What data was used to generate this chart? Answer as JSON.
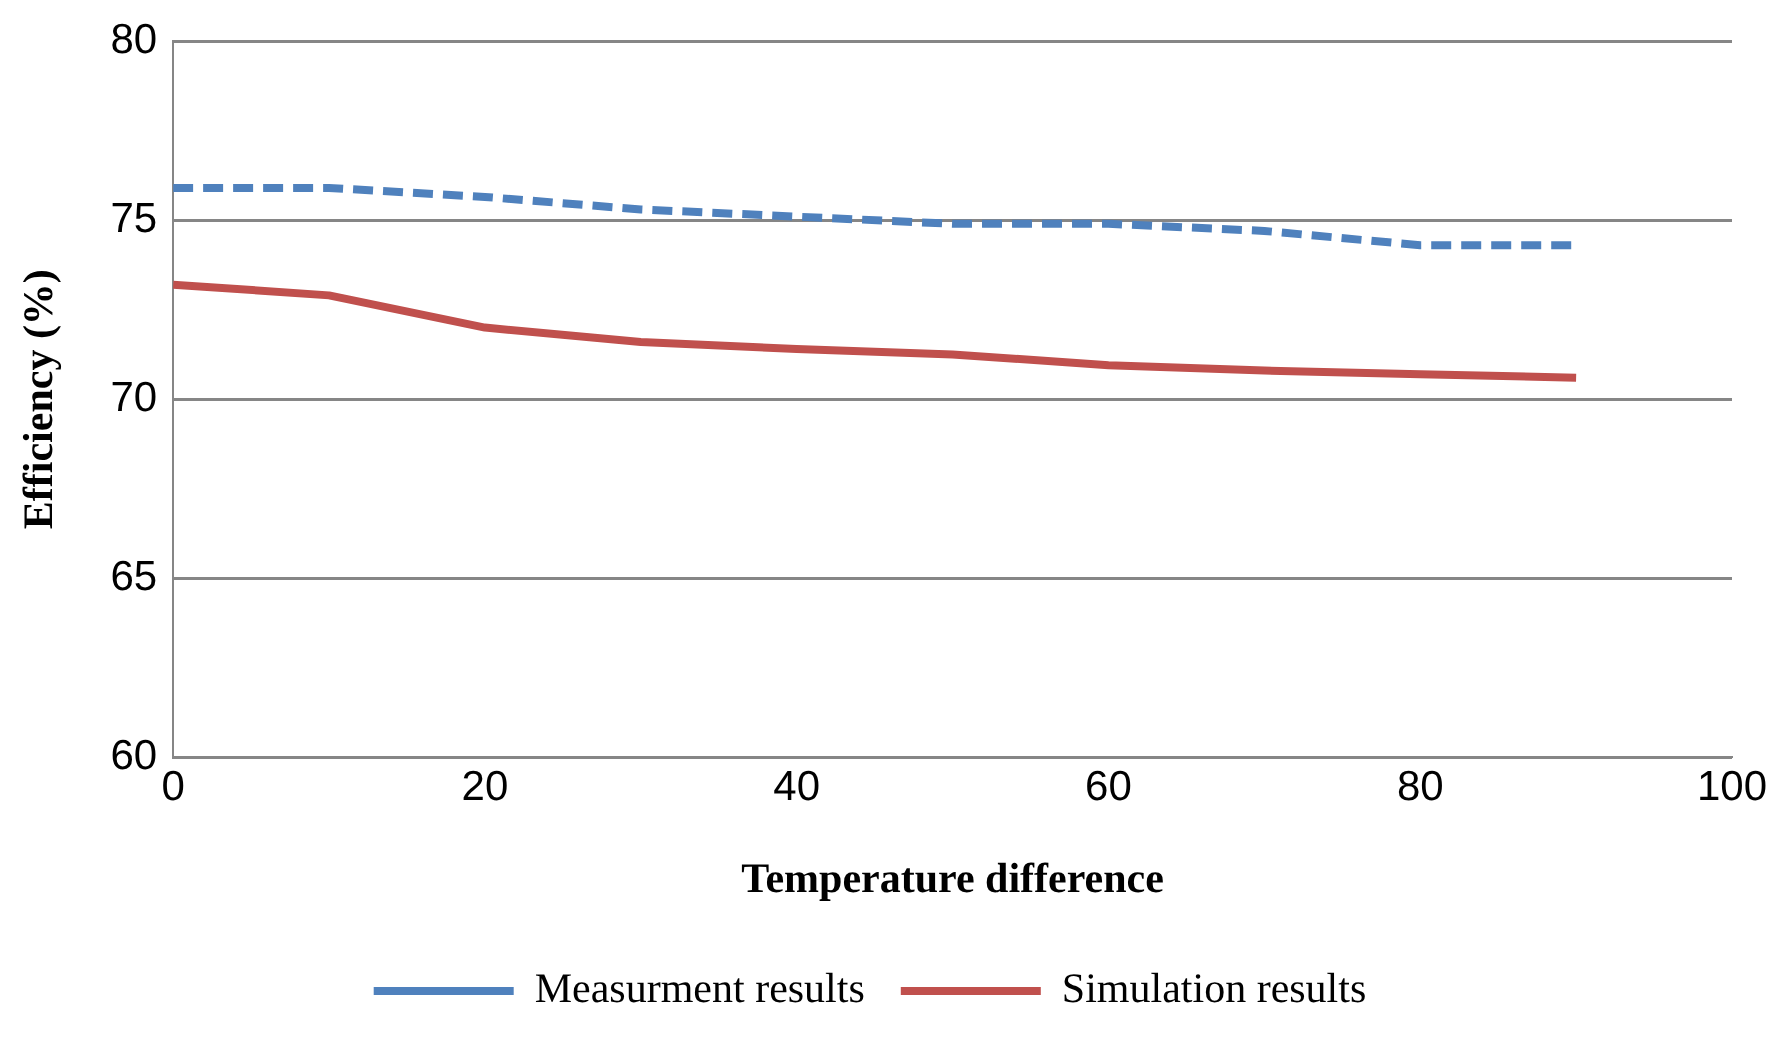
{
  "chart_data": {
    "type": "line",
    "xlabel": "Temperature difference",
    "ylabel": "Efficiency (%)",
    "x": [
      0,
      10,
      20,
      30,
      40,
      50,
      60,
      70,
      80,
      90
    ],
    "series": [
      {
        "name": "Measurment results",
        "color": "#4f81bd",
        "line_style": "dashed",
        "values": [
          75.9,
          75.9,
          75.65,
          75.3,
          75.1,
          74.9,
          74.9,
          74.7,
          74.3,
          74.3
        ]
      },
      {
        "name": "Simulation results",
        "color": "#c0504d",
        "line_style": "solid",
        "values": [
          73.2,
          72.9,
          72.0,
          71.6,
          71.4,
          71.25,
          70.95,
          70.8,
          70.7,
          70.6
        ]
      }
    ],
    "xlim": [
      0,
      100
    ],
    "xticks": [
      0,
      20,
      40,
      60,
      80,
      100
    ],
    "ylim": [
      60,
      80
    ],
    "yticks": [
      60,
      65,
      70,
      75,
      80
    ],
    "grid": "y",
    "legend": "bottom",
    "marker": "none"
  }
}
